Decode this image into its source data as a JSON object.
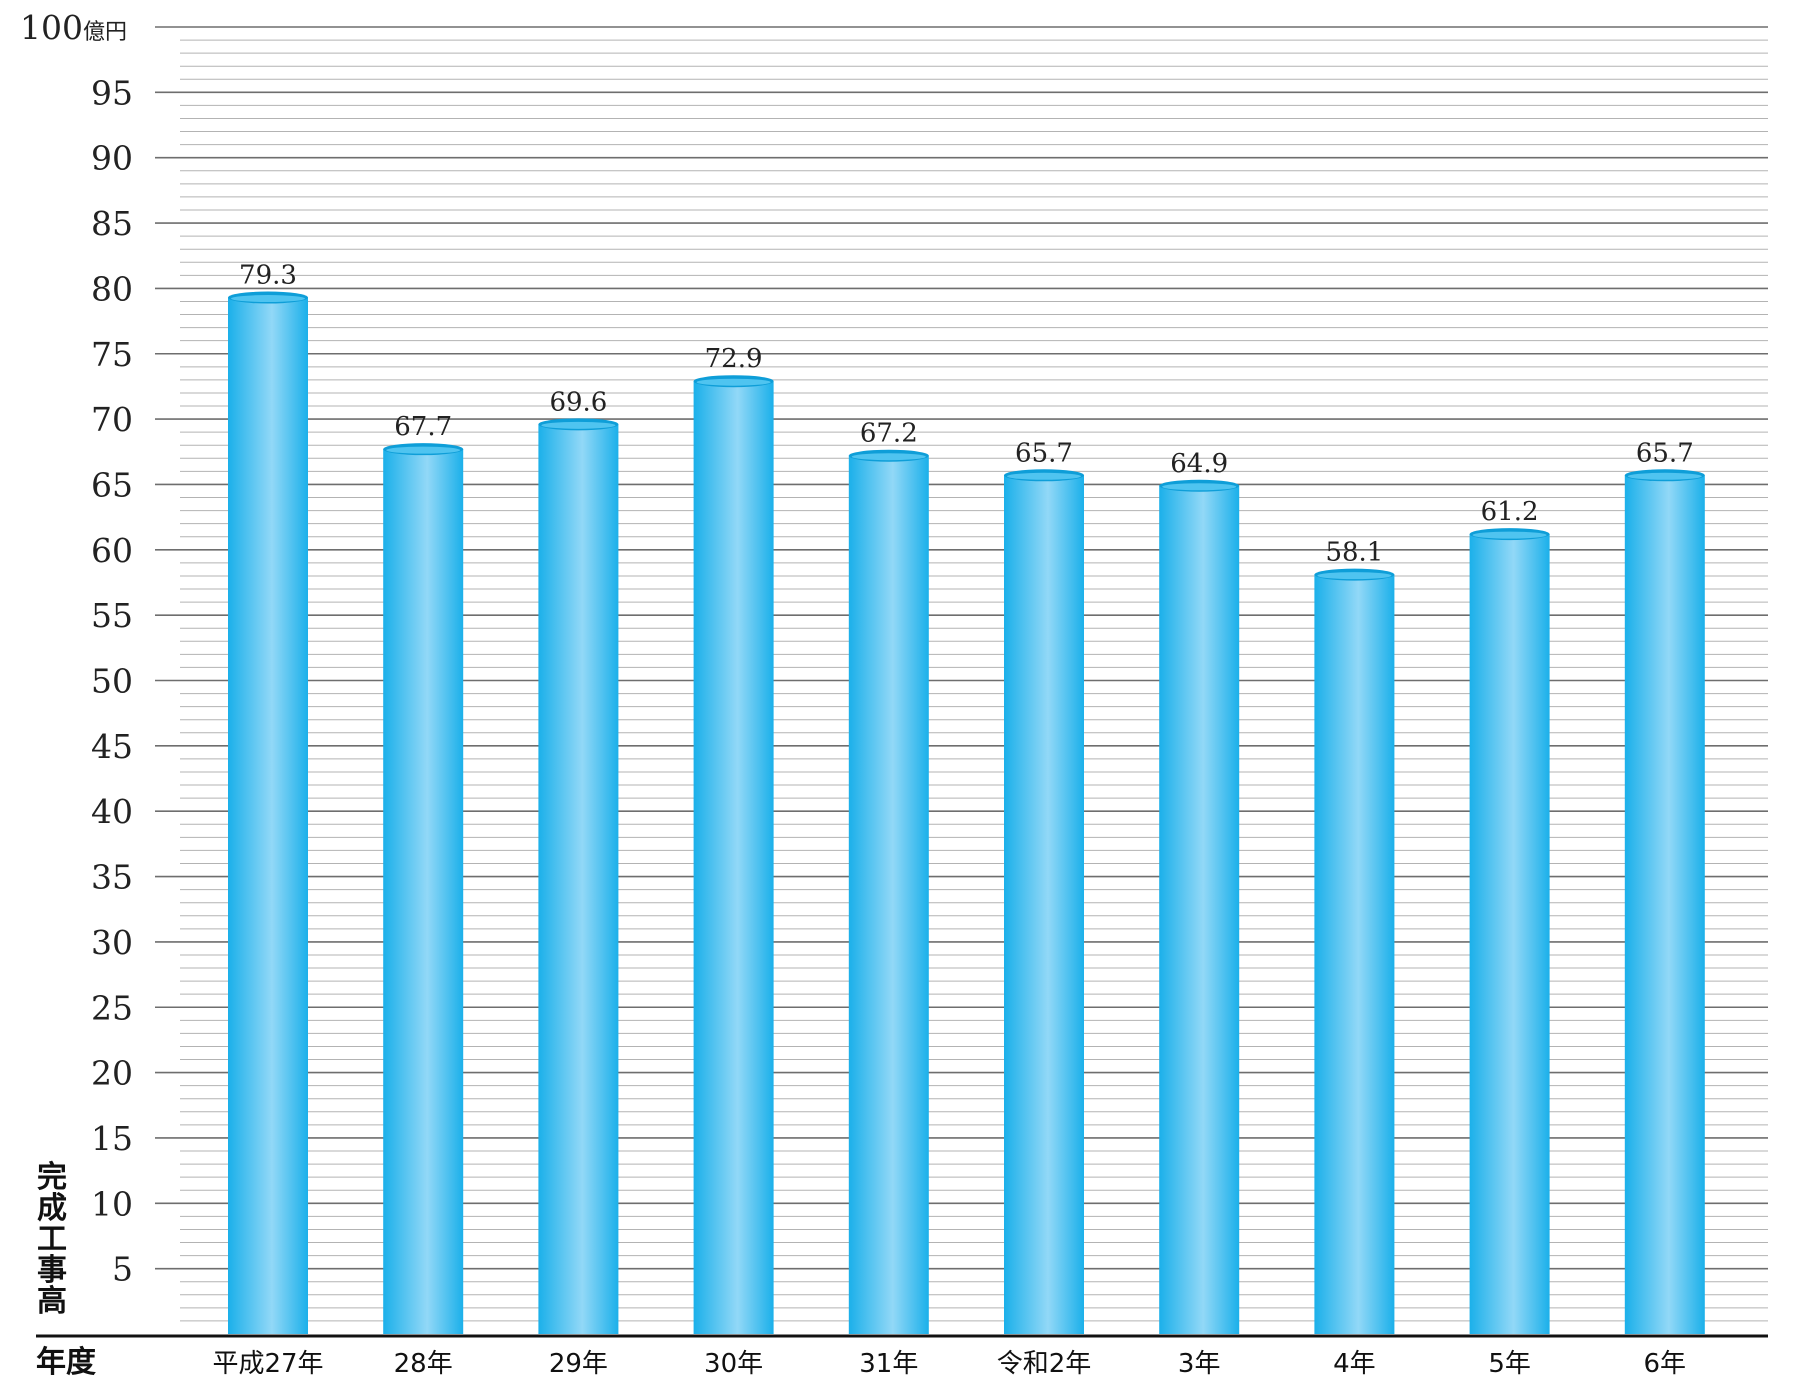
{
  "chart_data": {
    "type": "bar",
    "categories": [
      "平成27年",
      "28年",
      "29年",
      "30年",
      "31年",
      "令和2年",
      "3年",
      "4年",
      "5年",
      "6年"
    ],
    "values": [
      79.3,
      67.7,
      69.6,
      72.9,
      67.2,
      65.7,
      64.9,
      58.1,
      61.2,
      65.7
    ],
    "xlabel": "年度",
    "ylabel": "完成工事高",
    "yunit": "億円",
    "ylim": [
      0,
      100
    ],
    "yticks": [
      5,
      10,
      15,
      20,
      25,
      30,
      35,
      40,
      45,
      50,
      55,
      60,
      65,
      70,
      75,
      80,
      85,
      90,
      95,
      100
    ],
    "grid": true,
    "data_labels": true,
    "bar_color": "#1bb0ea",
    "bar_highlight": "#92d8f7"
  }
}
